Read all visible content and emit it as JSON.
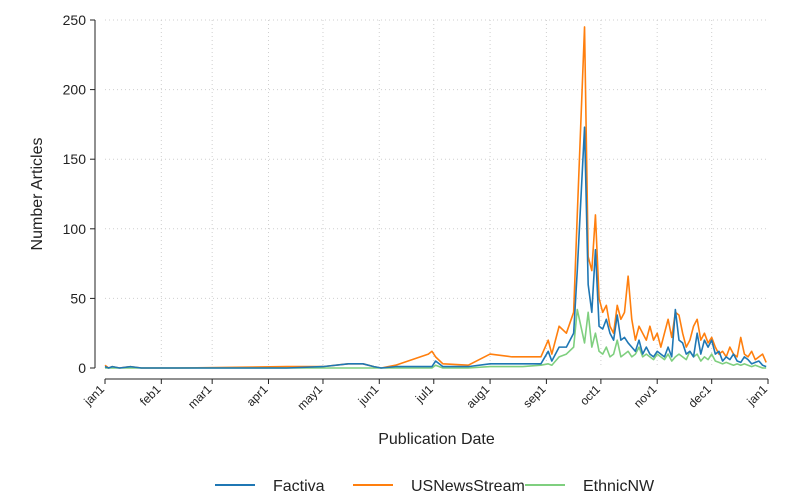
{
  "chart_data": {
    "type": "line",
    "title": "",
    "xlabel": "Publication Date",
    "ylabel": "Number Articles",
    "xlim": [
      "jan1",
      "jan1"
    ],
    "ylim": [
      0,
      250
    ],
    "yticks": [
      0,
      50,
      100,
      150,
      200,
      250
    ],
    "xtick_labels": [
      "jan1",
      "feb1",
      "mar1",
      "apr1",
      "may1",
      "jun1",
      "jul1",
      "aug1",
      "sep1",
      "oct1",
      "nov1",
      "dec1",
      "jan1"
    ],
    "xtick_days": [
      0,
      31,
      59,
      90,
      120,
      151,
      181,
      212,
      243,
      273,
      304,
      334,
      365
    ],
    "grid": true,
    "legend_position": "bottom",
    "colors": {
      "Factiva": "#1f77b4",
      "USNewsStream": "#ff7f0e",
      "EthnicNW": "#7fcf7f"
    },
    "series": [
      {
        "name": "Factiva",
        "x": [
          0,
          2,
          4,
          8,
          14,
          20,
          40,
          100,
          120,
          134,
          142,
          148,
          152,
          160,
          180,
          182,
          186,
          200,
          212,
          224,
          230,
          240,
          244,
          246,
          250,
          254,
          258,
          260,
          264,
          266,
          268,
          270,
          272,
          274,
          276,
          278,
          280,
          282,
          284,
          286,
          288,
          290,
          292,
          294,
          296,
          298,
          300,
          302,
          304,
          306,
          308,
          310,
          312,
          314,
          316,
          318,
          320,
          322,
          324,
          326,
          328,
          330,
          332,
          334,
          336,
          338,
          340,
          342,
          344,
          346,
          348,
          350,
          352,
          354,
          356,
          358,
          360,
          362,
          364
        ],
        "values": [
          1,
          0,
          1,
          0,
          1,
          0,
          0,
          0,
          1,
          3,
          3,
          1,
          0,
          1,
          1,
          5,
          1,
          1,
          3,
          3,
          3,
          3,
          12,
          5,
          15,
          15,
          25,
          70,
          173,
          60,
          40,
          85,
          30,
          28,
          35,
          25,
          20,
          38,
          20,
          22,
          18,
          15,
          12,
          20,
          10,
          15,
          10,
          8,
          12,
          10,
          8,
          15,
          8,
          42,
          20,
          18,
          10,
          12,
          8,
          25,
          10,
          20,
          15,
          20,
          10,
          12,
          5,
          8,
          6,
          10,
          5,
          4,
          8,
          6,
          3,
          4,
          5,
          2,
          1
        ]
      },
      {
        "name": "USNewsStream",
        "x": [
          0,
          2,
          4,
          8,
          14,
          20,
          40,
          100,
          120,
          134,
          142,
          148,
          152,
          160,
          178,
          180,
          182,
          186,
          200,
          212,
          224,
          230,
          240,
          244,
          246,
          250,
          254,
          258,
          260,
          264,
          266,
          268,
          270,
          272,
          274,
          276,
          278,
          280,
          282,
          284,
          286,
          288,
          290,
          292,
          294,
          296,
          298,
          300,
          302,
          304,
          306,
          308,
          310,
          312,
          314,
          316,
          318,
          320,
          322,
          324,
          326,
          328,
          330,
          332,
          334,
          336,
          338,
          340,
          342,
          344,
          346,
          348,
          350,
          352,
          354,
          356,
          358,
          360,
          362,
          364
        ],
        "values": [
          2,
          0,
          1,
          0,
          1,
          0,
          0,
          1,
          1,
          3,
          3,
          1,
          0,
          2,
          10,
          12,
          8,
          3,
          2,
          10,
          8,
          8,
          8,
          20,
          10,
          30,
          25,
          40,
          110,
          245,
          80,
          70,
          110,
          50,
          40,
          45,
          30,
          25,
          45,
          35,
          40,
          66,
          35,
          20,
          30,
          25,
          20,
          30,
          20,
          25,
          15,
          25,
          35,
          22,
          40,
          38,
          25,
          15,
          20,
          30,
          35,
          20,
          25,
          18,
          22,
          15,
          10,
          12,
          8,
          15,
          10,
          8,
          22,
          10,
          8,
          12,
          6,
          8,
          10,
          4
        ]
      },
      {
        "name": "EthnicNW",
        "x": [
          0,
          2,
          4,
          8,
          14,
          20,
          40,
          100,
          120,
          134,
          142,
          148,
          152,
          160,
          180,
          182,
          186,
          200,
          212,
          224,
          230,
          240,
          244,
          246,
          250,
          254,
          258,
          260,
          264,
          266,
          268,
          270,
          272,
          274,
          276,
          278,
          280,
          282,
          284,
          286,
          288,
          290,
          292,
          294,
          296,
          298,
          300,
          302,
          304,
          306,
          308,
          310,
          312,
          314,
          316,
          318,
          320,
          322,
          324,
          326,
          328,
          330,
          332,
          334,
          336,
          338,
          340,
          342,
          344,
          346,
          348,
          350,
          352,
          354,
          356,
          358,
          360,
          362,
          364
        ],
        "values": [
          0,
          0,
          0,
          0,
          0,
          0,
          0,
          0,
          0,
          0,
          0,
          0,
          0,
          0,
          0,
          2,
          0,
          0,
          1,
          1,
          1,
          2,
          3,
          2,
          8,
          10,
          15,
          42,
          18,
          40,
          15,
          25,
          12,
          10,
          15,
          8,
          10,
          20,
          8,
          10,
          12,
          8,
          10,
          15,
          8,
          10,
          8,
          6,
          10,
          8,
          6,
          10,
          5,
          8,
          10,
          8,
          6,
          12,
          8,
          10,
          5,
          8,
          6,
          10,
          5,
          4,
          3,
          4,
          3,
          2,
          3,
          2,
          3,
          2,
          1,
          2,
          1,
          0,
          0
        ]
      }
    ]
  }
}
